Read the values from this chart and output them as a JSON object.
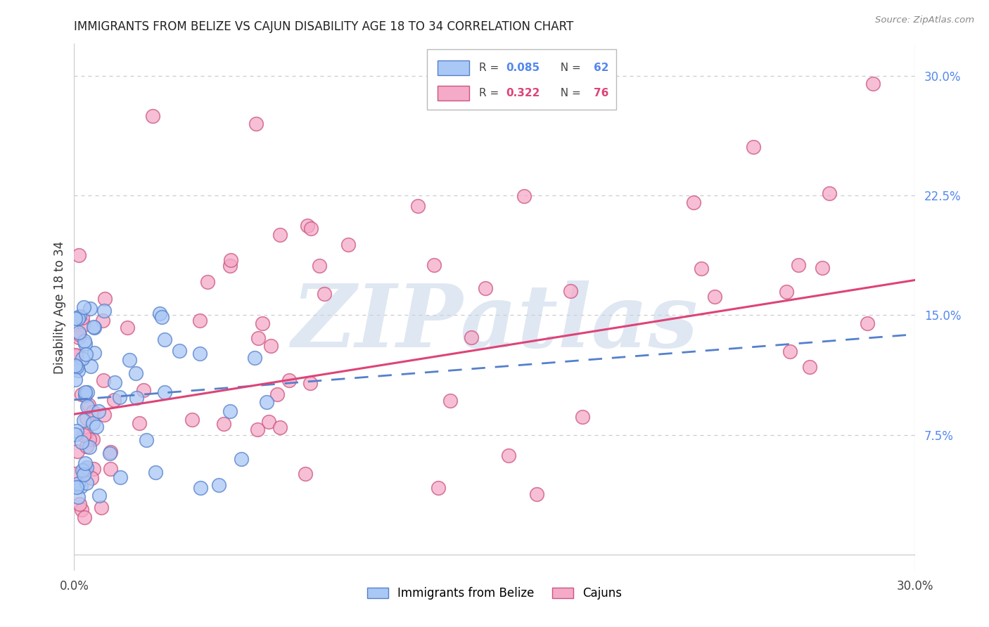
{
  "title": "IMMIGRANTS FROM BELIZE VS CAJUN DISABILITY AGE 18 TO 34 CORRELATION CHART",
  "source": "Source: ZipAtlas.com",
  "ylabel": "Disability Age 18 to 34",
  "xlim": [
    0.0,
    0.3
  ],
  "ylim": [
    -0.01,
    0.32
  ],
  "belize_color": "#aac8f5",
  "cajun_color": "#f5aac8",
  "belize_edge": "#5580cc",
  "cajun_edge": "#cc5580",
  "trendline_belize_color": "#5580cc",
  "trendline_cajun_color": "#dd4477",
  "watermark_color": "#c5d5e8",
  "background_color": "#ffffff",
  "grid_color": "#cccccc",
  "trendline_belize_x0": 0.0,
  "trendline_belize_y0": 0.097,
  "trendline_belize_x1": 0.3,
  "trendline_belize_y1": 0.138,
  "trendline_cajun_x0": 0.0,
  "trendline_cajun_y0": 0.088,
  "trendline_cajun_x1": 0.3,
  "trendline_cajun_y1": 0.172,
  "belize_seed": 12345,
  "cajun_seed": 67890
}
